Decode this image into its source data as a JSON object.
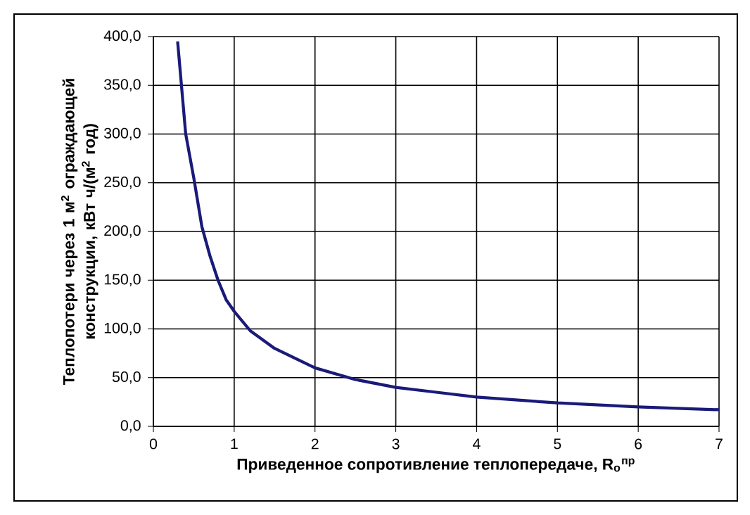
{
  "chart_data": {
    "type": "line",
    "xlabel": "Приведенное сопротивление теплопередаче, R$_{o}$$^{пр}$",
    "ylabel": "Теплопотери через 1 м$^{2}$ ограждающей конструкции, кВт ч/(м$^{2}$ год)",
    "x": [
      0.3,
      0.4,
      0.5,
      0.6,
      0.7,
      0.8,
      0.9,
      1.0,
      1.2,
      1.5,
      2.0,
      2.5,
      3.0,
      3.5,
      4.0,
      5.0,
      6.0,
      7.0
    ],
    "values": [
      395,
      300,
      255,
      205,
      175,
      150,
      130,
      118,
      98,
      80,
      60,
      48,
      40,
      35,
      30,
      24,
      20,
      17
    ],
    "color": "#1a1a7a",
    "xlim": [
      0,
      7
    ],
    "ylim": [
      0,
      400
    ],
    "xticks": [
      0,
      1,
      2,
      3,
      4,
      5,
      6,
      7
    ],
    "yticks": [
      {
        "value": 0,
        "label": "0,0"
      },
      {
        "value": 50,
        "label": "50,0"
      },
      {
        "value": 100,
        "label": "100,0"
      },
      {
        "value": 150,
        "label": "150,0"
      },
      {
        "value": 200,
        "label": "200,0"
      },
      {
        "value": 250,
        "label": "250,0"
      },
      {
        "value": 300,
        "label": "300,0"
      },
      {
        "value": 350,
        "label": "350,0"
      },
      {
        "value": 400,
        "label": "400,0"
      }
    ],
    "grid": true
  }
}
